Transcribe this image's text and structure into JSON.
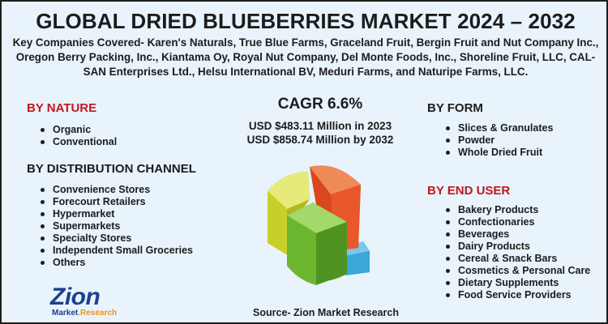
{
  "title": "GLOBAL DRIED BLUEBERRIES MARKET 2024 – 2032",
  "companies": "Key Companies Covered- Karen's Naturals, True Blue Farms, Graceland Fruit, Bergin Fruit and Nut Company Inc., Oregon Berry Packing, Inc., Kiantama Oy, Royal Nut Company, Del Monte Foods, Inc., Shoreline Fruit, LLC, CAL-SAN Enterprises Ltd., Helsu International BV, Meduri Farms, and Naturipe Farms, LLC.",
  "by_nature": {
    "heading": "BY NATURE",
    "items": [
      "Organic",
      "Conventional"
    ]
  },
  "by_distribution": {
    "heading": "BY DISTRIBUTION CHANNEL",
    "items": [
      "Convenience Stores",
      "Forecourt Retailers",
      "Hypermarket",
      "Supermarkets",
      "Specialty Stores",
      "Independent Small Groceries",
      "Others"
    ]
  },
  "by_form": {
    "heading": "BY FORM",
    "items": [
      "Slices & Granulates",
      "Powder",
      "Whole Dried Fruit"
    ]
  },
  "by_end_user": {
    "heading": "BY END USER",
    "items": [
      "Bakery Products",
      "Confectionaries",
      "Beverages",
      "Dairy Products",
      "Cereal & Snack Bars",
      "Cosmetics & Personal Care",
      "Dietary Supplements",
      "Food Service Providers"
    ]
  },
  "cagr": "CAGR 6.6%",
  "value_2023": "USD $483.11 Million in 2023",
  "value_2032": "USD $858.74 Million by 2032",
  "source": "Source- Zion Market Research",
  "logo": {
    "word": "Zion",
    "sub_part1": "Market",
    "sub_part2": ".Research"
  },
  "colors": {
    "background": "#e8f3fb",
    "heading_red": "#c4161c",
    "text": "#1c1c1c",
    "logo_blue": "#1d3f8f",
    "logo_orange": "#f29112",
    "chart_orange": "#e8582a",
    "chart_yellow": "#c9cf2a",
    "chart_green": "#6cb52e",
    "chart_blue": "#3aa7d8"
  },
  "icons": [
    "zion-logo-icon",
    "3d-pie-chart-graphic"
  ]
}
